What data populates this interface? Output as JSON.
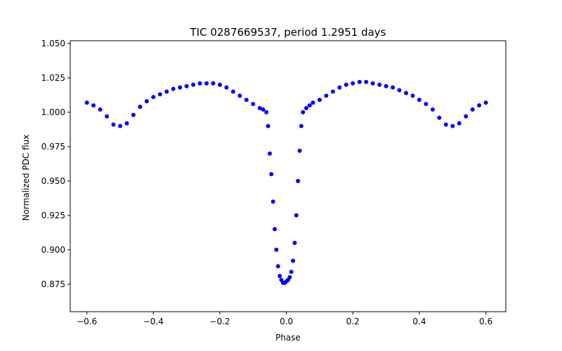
{
  "chart_data": {
    "type": "scatter",
    "title": "TIC 0287669537, period 1.2951 days",
    "xlabel": "Phase",
    "ylabel": "Normalized PDC flux",
    "xlim": [
      -0.65,
      0.66
    ],
    "ylim": [
      0.855,
      1.052
    ],
    "xticks": [
      -0.6,
      -0.4,
      -0.2,
      0.0,
      0.2,
      0.4,
      0.6
    ],
    "xtick_labels": [
      "−0.6",
      "−0.4",
      "−0.2",
      "0.0",
      "0.2",
      "0.4",
      "0.6"
    ],
    "yticks": [
      0.875,
      0.9,
      0.925,
      0.95,
      0.975,
      1.0,
      1.025,
      1.05
    ],
    "ytick_labels": [
      "0.875",
      "0.900",
      "0.925",
      "0.950",
      "0.975",
      "1.000",
      "1.025",
      "1.050"
    ],
    "grid": false,
    "marker_color": "#0000ff",
    "series": [
      {
        "name": "",
        "x": [
          -0.6,
          -0.58,
          -0.56,
          -0.54,
          -0.52,
          -0.5,
          -0.48,
          -0.46,
          -0.44,
          -0.42,
          -0.4,
          -0.38,
          -0.36,
          -0.34,
          -0.32,
          -0.3,
          -0.28,
          -0.26,
          -0.24,
          -0.22,
          -0.2,
          -0.18,
          -0.16,
          -0.14,
          -0.12,
          -0.1,
          -0.08,
          -0.07,
          -0.06,
          -0.055,
          -0.05,
          -0.045,
          -0.04,
          -0.035,
          -0.03,
          -0.025,
          -0.02,
          -0.015,
          -0.01,
          -0.005,
          0.0,
          0.005,
          0.01,
          0.015,
          0.02,
          0.025,
          0.03,
          0.035,
          0.04,
          0.045,
          0.05,
          0.06,
          0.07,
          0.08,
          0.1,
          0.12,
          0.14,
          0.16,
          0.18,
          0.2,
          0.22,
          0.24,
          0.26,
          0.28,
          0.3,
          0.32,
          0.34,
          0.36,
          0.38,
          0.4,
          0.42,
          0.44,
          0.46,
          0.48,
          0.5,
          0.52,
          0.54,
          0.56,
          0.58,
          0.6
        ],
        "y": [
          1.007,
          1.005,
          1.002,
          0.997,
          0.991,
          0.99,
          0.992,
          0.998,
          1.004,
          1.008,
          1.011,
          1.013,
          1.015,
          1.017,
          1.018,
          1.019,
          1.02,
          1.021,
          1.021,
          1.021,
          1.02,
          1.018,
          1.015,
          1.012,
          1.009,
          1.006,
          1.003,
          1.002,
          1.0,
          0.99,
          0.97,
          0.955,
          0.935,
          0.915,
          0.9,
          0.888,
          0.881,
          0.878,
          0.876,
          0.876,
          0.877,
          0.878,
          0.88,
          0.884,
          0.892,
          0.905,
          0.925,
          0.95,
          0.972,
          0.99,
          1.0,
          1.003,
          1.005,
          1.007,
          1.009,
          1.012,
          1.015,
          1.018,
          1.02,
          1.021,
          1.022,
          1.022,
          1.021,
          1.02,
          1.019,
          1.018,
          1.016,
          1.014,
          1.012,
          1.009,
          1.006,
          1.002,
          0.996,
          0.991,
          0.99,
          0.992,
          0.997,
          1.002,
          1.005,
          1.007
        ]
      }
    ]
  }
}
